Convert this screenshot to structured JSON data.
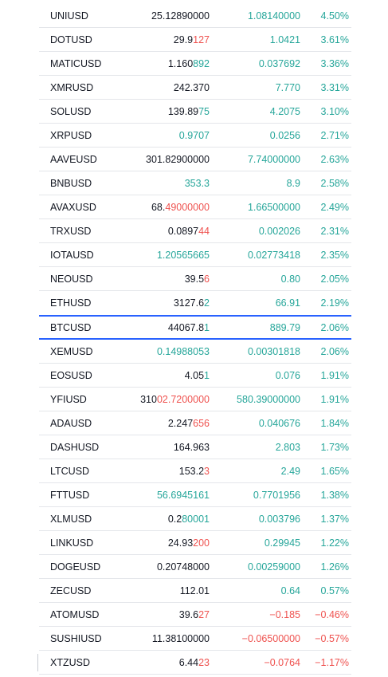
{
  "watchlist": {
    "rows": [
      {
        "symbol": "UNIUSD",
        "last_main": "25.1",
        "last_tail": "2890000",
        "last_color": "none",
        "tail_color": "none",
        "chg": "1.08140000",
        "pct": "4.50%",
        "dir": "pos"
      },
      {
        "symbol": "DOTUSD",
        "last_main": "29.9",
        "last_tail": "127",
        "last_color": "none",
        "tail_color": "down",
        "chg": "1.0421",
        "pct": "3.61%",
        "dir": "pos"
      },
      {
        "symbol": "MATICUSD",
        "last_main": "1.160",
        "last_tail": "892",
        "last_color": "none",
        "tail_color": "up",
        "chg": "0.037692",
        "pct": "3.36%",
        "dir": "pos"
      },
      {
        "symbol": "XMRUSD",
        "last_main": "242.370",
        "last_tail": "",
        "last_color": "none",
        "tail_color": "none",
        "chg": "7.770",
        "pct": "3.31%",
        "dir": "pos"
      },
      {
        "symbol": "SOLUSD",
        "last_main": "139.89",
        "last_tail": "75",
        "last_color": "none",
        "tail_color": "up",
        "chg": "4.2075",
        "pct": "3.10%",
        "dir": "pos"
      },
      {
        "symbol": "XRPUSD",
        "last_main": "0.9707",
        "last_tail": "",
        "last_color": "up",
        "tail_color": "none",
        "chg": "0.0256",
        "pct": "2.71%",
        "dir": "pos"
      },
      {
        "symbol": "AAVEUSD",
        "last_main": "301.8",
        "last_tail": "2900000",
        "last_color": "none",
        "tail_color": "none",
        "chg": "7.74000000",
        "pct": "2.63%",
        "dir": "pos"
      },
      {
        "symbol": "BNBUSD",
        "last_main": "353.3",
        "last_tail": "",
        "last_color": "up",
        "tail_color": "none",
        "chg": "8.9",
        "pct": "2.58%",
        "dir": "pos"
      },
      {
        "symbol": "AVAXUSD",
        "last_main": "68.",
        "last_tail": "49000000",
        "last_color": "none",
        "tail_color": "down",
        "chg": "1.66500000",
        "pct": "2.49%",
        "dir": "pos"
      },
      {
        "symbol": "TRXUSD",
        "last_main": "0.0897",
        "last_tail": "44",
        "last_color": "none",
        "tail_color": "down",
        "chg": "0.002026",
        "pct": "2.31%",
        "dir": "pos"
      },
      {
        "symbol": "IOTAUSD",
        "last_main": "1.20565665",
        "last_tail": "",
        "last_color": "up",
        "tail_color": "none",
        "chg": "0.02773418",
        "pct": "2.35%",
        "dir": "pos"
      },
      {
        "symbol": "NEOUSD",
        "last_main": "39.5",
        "last_tail": "6",
        "last_color": "none",
        "tail_color": "down",
        "chg": "0.80",
        "pct": "2.05%",
        "dir": "pos"
      },
      {
        "symbol": "ETHUSD",
        "last_main": "3127.6",
        "last_tail": "2",
        "last_color": "none",
        "tail_color": "up",
        "chg": "66.91",
        "pct": "2.19%",
        "dir": "pos"
      },
      {
        "symbol": "BTCUSD",
        "last_main": "44067.8",
        "last_tail": "1",
        "last_color": "none",
        "tail_color": "up",
        "chg": "889.79",
        "pct": "2.06%",
        "dir": "pos",
        "selected": true
      },
      {
        "symbol": "XEMUSD",
        "last_main": "0.14988053",
        "last_tail": "",
        "last_color": "up",
        "tail_color": "none",
        "chg": "0.00301818",
        "pct": "2.06%",
        "dir": "pos"
      },
      {
        "symbol": "EOSUSD",
        "last_main": "4.05",
        "last_tail": "1",
        "last_color": "none",
        "tail_color": "up",
        "chg": "0.076",
        "pct": "1.91%",
        "dir": "pos"
      },
      {
        "symbol": "YFIUSD",
        "last_main": "310",
        "last_tail": "02.7200000",
        "last_color": "none",
        "tail_color": "down",
        "chg": "580.39000000",
        "pct": "1.91%",
        "dir": "pos"
      },
      {
        "symbol": "ADAUSD",
        "last_main": "2.247",
        "last_tail": "656",
        "last_color": "none",
        "tail_color": "down",
        "chg": "0.040676",
        "pct": "1.84%",
        "dir": "pos"
      },
      {
        "symbol": "DASHUSD",
        "last_main": "164.963",
        "last_tail": "",
        "last_color": "none",
        "tail_color": "none",
        "chg": "2.803",
        "pct": "1.73%",
        "dir": "pos"
      },
      {
        "symbol": "LTCUSD",
        "last_main": "153.2",
        "last_tail": "3",
        "last_color": "none",
        "tail_color": "down",
        "chg": "2.49",
        "pct": "1.65%",
        "dir": "pos"
      },
      {
        "symbol": "FTTUSD",
        "last_main": "56.6945161",
        "last_tail": "",
        "last_color": "up",
        "tail_color": "none",
        "chg": "0.7701956",
        "pct": "1.38%",
        "dir": "pos"
      },
      {
        "symbol": "XLMUSD",
        "last_main": "0.2",
        "last_tail": "80001",
        "last_color": "none",
        "tail_color": "up",
        "chg": "0.003796",
        "pct": "1.37%",
        "dir": "pos"
      },
      {
        "symbol": "LINKUSD",
        "last_main": "24.93",
        "last_tail": "200",
        "last_color": "none",
        "tail_color": "down",
        "chg": "0.29945",
        "pct": "1.22%",
        "dir": "pos"
      },
      {
        "symbol": "DOGEUSD",
        "last_main": "0.20748000",
        "last_tail": "",
        "last_color": "none",
        "tail_color": "none",
        "chg": "0.00259000",
        "pct": "1.26%",
        "dir": "pos"
      },
      {
        "symbol": "ZECUSD",
        "last_main": "112.01",
        "last_tail": "",
        "last_color": "none",
        "tail_color": "none",
        "chg": "0.64",
        "pct": "0.57%",
        "dir": "pos"
      },
      {
        "symbol": "ATOMUSD",
        "last_main": "39.6",
        "last_tail": "27",
        "last_color": "none",
        "tail_color": "down",
        "chg": "−0.185",
        "pct": "−0.46%",
        "dir": "neg"
      },
      {
        "symbol": "SUSHIUSD",
        "last_main": "11.38100000",
        "last_tail": "",
        "last_color": "none",
        "tail_color": "none",
        "chg": "−0.06500000",
        "pct": "−0.57%",
        "dir": "neg"
      },
      {
        "symbol": "XTZUSD",
        "last_main": "6.44",
        "last_tail": "23",
        "last_color": "none",
        "tail_color": "down",
        "chg": "−0.0764",
        "pct": "−1.17%",
        "dir": "neg",
        "edge_mark": true
      }
    ]
  },
  "colors": {
    "positive": "#26a69a",
    "negative": "#ef5350",
    "text": "#131722",
    "selection": "#2962ff",
    "divider": "#e4e6ea"
  }
}
